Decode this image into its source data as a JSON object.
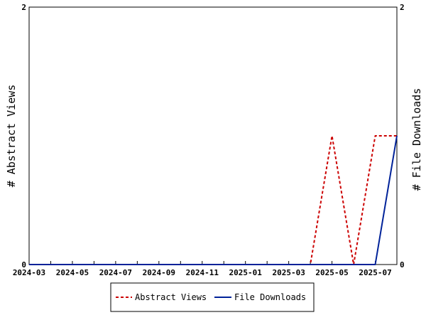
{
  "chart_data": {
    "type": "line",
    "x": [
      "2024-03",
      "2024-04",
      "2024-05",
      "2024-06",
      "2024-07",
      "2024-08",
      "2024-09",
      "2024-10",
      "2024-11",
      "2024-12",
      "2025-01",
      "2025-02",
      "2025-03",
      "2025-04",
      "2025-05",
      "2025-06",
      "2025-07",
      "2025-08"
    ],
    "x_tick_labels": [
      "2024-03",
      "2024-05",
      "2024-07",
      "2024-09",
      "2024-11",
      "2025-01",
      "2025-03",
      "2025-05",
      "2025-07"
    ],
    "ylabel_left": "# Abstract Views",
    "ylabel_right": "# File Downloads",
    "ylim_left": [
      0,
      2
    ],
    "ylim_right": [
      0,
      2
    ],
    "y_tick_labels_left": [
      "0",
      "2"
    ],
    "y_tick_labels_right": [
      "0",
      "2"
    ],
    "grid": false,
    "legend_position": "bottom",
    "series": [
      {
        "name": "Abstract Views",
        "color": "#cc0000",
        "dash": "dashed",
        "axis": "left",
        "values": [
          0,
          0,
          0,
          0,
          0,
          0,
          0,
          0,
          0,
          0,
          0,
          0,
          0,
          0,
          1,
          0,
          1,
          1
        ]
      },
      {
        "name": "File Downloads",
        "color": "#002299",
        "dash": "solid",
        "axis": "right",
        "values": [
          0,
          0,
          0,
          0,
          0,
          0,
          0,
          0,
          0,
          0,
          0,
          0,
          0,
          0,
          0,
          0,
          0,
          1
        ]
      }
    ]
  }
}
